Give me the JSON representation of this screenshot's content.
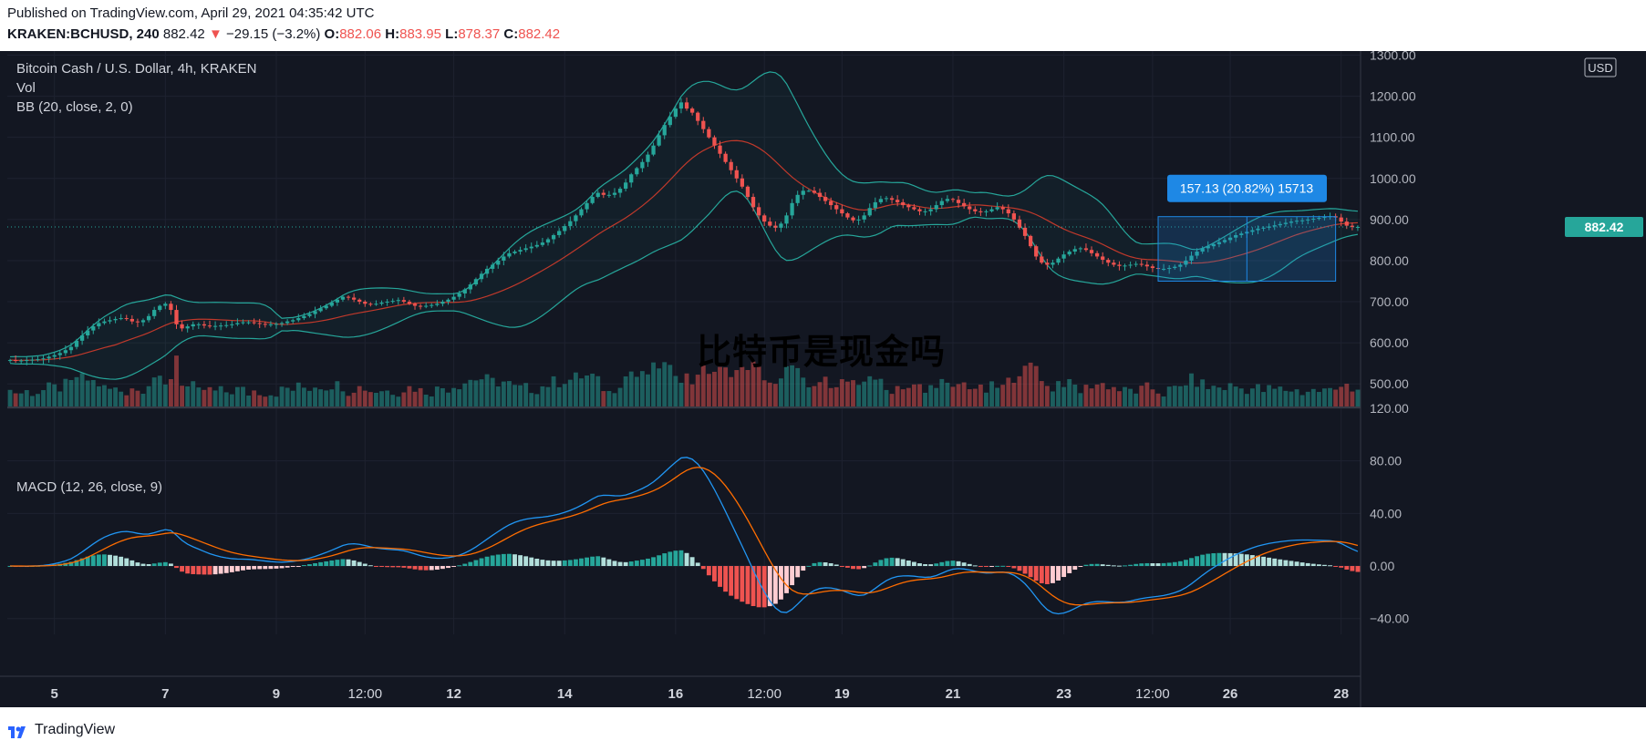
{
  "header": {
    "published": "Published on TradingView.com, April 29, 2021 04:35:42 UTC",
    "symbol": "KRAKEN:BCHUSD, 240",
    "last": "882.42",
    "change": "−29.15 (−3.2%)",
    "o_label": "O:",
    "o_value": "882.06",
    "h_label": "H:",
    "h_value": "883.95",
    "l_label": "L:",
    "l_value": "878.37",
    "c_label": "C:",
    "c_value": "882.42"
  },
  "legend": {
    "title": "Bitcoin Cash / U.S. Dollar, 4h, KRAKEN",
    "vol": "Vol",
    "bb": "BB (20, close, 2, 0)",
    "macd": "MACD (12, 26, close, 9)"
  },
  "currency_badge": "USD",
  "price_badge": "882.42",
  "measure_label": "157.13 (20.82%) 15713",
  "watermark": "比特币是现金吗",
  "footer": {
    "brand": "TradingView"
  },
  "colors": {
    "background": "#131722",
    "up": "#26a69a",
    "down": "#ef5350",
    "bb_band": "#26a69a",
    "bb_basis": "#c0392b",
    "macd_line": "#2196f3",
    "signal_line": "#ff6d00",
    "measure": "#1e88e5"
  },
  "chart_data": [
    {
      "type": "candlestick",
      "title": "Bitcoin Cash / U.S. Dollar, 4h, KRAKEN",
      "y_axis_ticks": [
        "1300.00",
        "1200.00",
        "1100.00",
        "1000.00",
        "900.00",
        "800.00",
        "700.00",
        "600.00",
        "500.00"
      ],
      "ylim": [
        445,
        1310
      ],
      "x_axis_ticks": [
        "5",
        "7",
        "9",
        "12:00",
        "12",
        "14",
        "16",
        "12:00",
        "19",
        "21",
        "23",
        "12:00",
        "26",
        "28"
      ],
      "x_tick_index": [
        8,
        28,
        48,
        64,
        80,
        100,
        120,
        136,
        150,
        170,
        190,
        206,
        220,
        240
      ],
      "closes": [
        558,
        557,
        557,
        558,
        559,
        560,
        562,
        566,
        570,
        575,
        582,
        590,
        605,
        618,
        630,
        640,
        648,
        652,
        655,
        658,
        660,
        658,
        652,
        650,
        655,
        665,
        680,
        690,
        695,
        680,
        645,
        635,
        640,
        645,
        645,
        642,
        640,
        641,
        642,
        643,
        645,
        648,
        650,
        650,
        648,
        646,
        645,
        645,
        646,
        648,
        652,
        655,
        660,
        665,
        670,
        677,
        684,
        690,
        698,
        705,
        712,
        710,
        705,
        700,
        695,
        693,
        695,
        698,
        700,
        702,
        704,
        700,
        695,
        690,
        688,
        690,
        692,
        695,
        700,
        705,
        712,
        720,
        730,
        742,
        755,
        768,
        780,
        790,
        800,
        810,
        818,
        822,
        826,
        830,
        834,
        838,
        844,
        852,
        862,
        872,
        884,
        896,
        910,
        925,
        940,
        955,
        965,
        960,
        960,
        965,
        975,
        990,
        1010,
        1025,
        1040,
        1058,
        1080,
        1105,
        1130,
        1150,
        1170,
        1185,
        1170,
        1160,
        1140,
        1120,
        1100,
        1080,
        1060,
        1040,
        1020,
        1000,
        980,
        955,
        930,
        910,
        895,
        885,
        880,
        890,
        910,
        940,
        960,
        970,
        970,
        965,
        955,
        945,
        935,
        925,
        915,
        905,
        898,
        900,
        910,
        928,
        942,
        950,
        952,
        948,
        942,
        935,
        930,
        925,
        920,
        920,
        925,
        935,
        945,
        950,
        948,
        940,
        932,
        925,
        920,
        918,
        920,
        925,
        930,
        925,
        915,
        900,
        880,
        860,
        835,
        810,
        795,
        790,
        795,
        805,
        815,
        822,
        828,
        830,
        826,
        818,
        810,
        802,
        795,
        790,
        787,
        788,
        790,
        792,
        790,
        786,
        782,
        780,
        780,
        782,
        785,
        790,
        800,
        812,
        822,
        830,
        835,
        840,
        845,
        850,
        856,
        862,
        866,
        870,
        874,
        878,
        880,
        883,
        886,
        889,
        892,
        895,
        897,
        898,
        900,
        902,
        904,
        906,
        908,
        905,
        895,
        885,
        882,
        882
      ],
      "bb": {
        "period": 20,
        "source": "close",
        "mult": 2,
        "offset": 0
      },
      "volume": {
        "name": "Vol"
      }
    },
    {
      "type": "line",
      "title": "MACD (12, 26, close, 9)",
      "y_axis_ticks": [
        "120.00",
        "80.00",
        "40.00",
        "0.00",
        "−40.00"
      ],
      "ylim": [
        -52,
        120
      ],
      "series": [
        {
          "name": "MACD",
          "computed_from": "closes",
          "fast": 12,
          "slow": 26
        },
        {
          "name": "Signal",
          "period": 9
        }
      ],
      "histogram": true
    }
  ]
}
